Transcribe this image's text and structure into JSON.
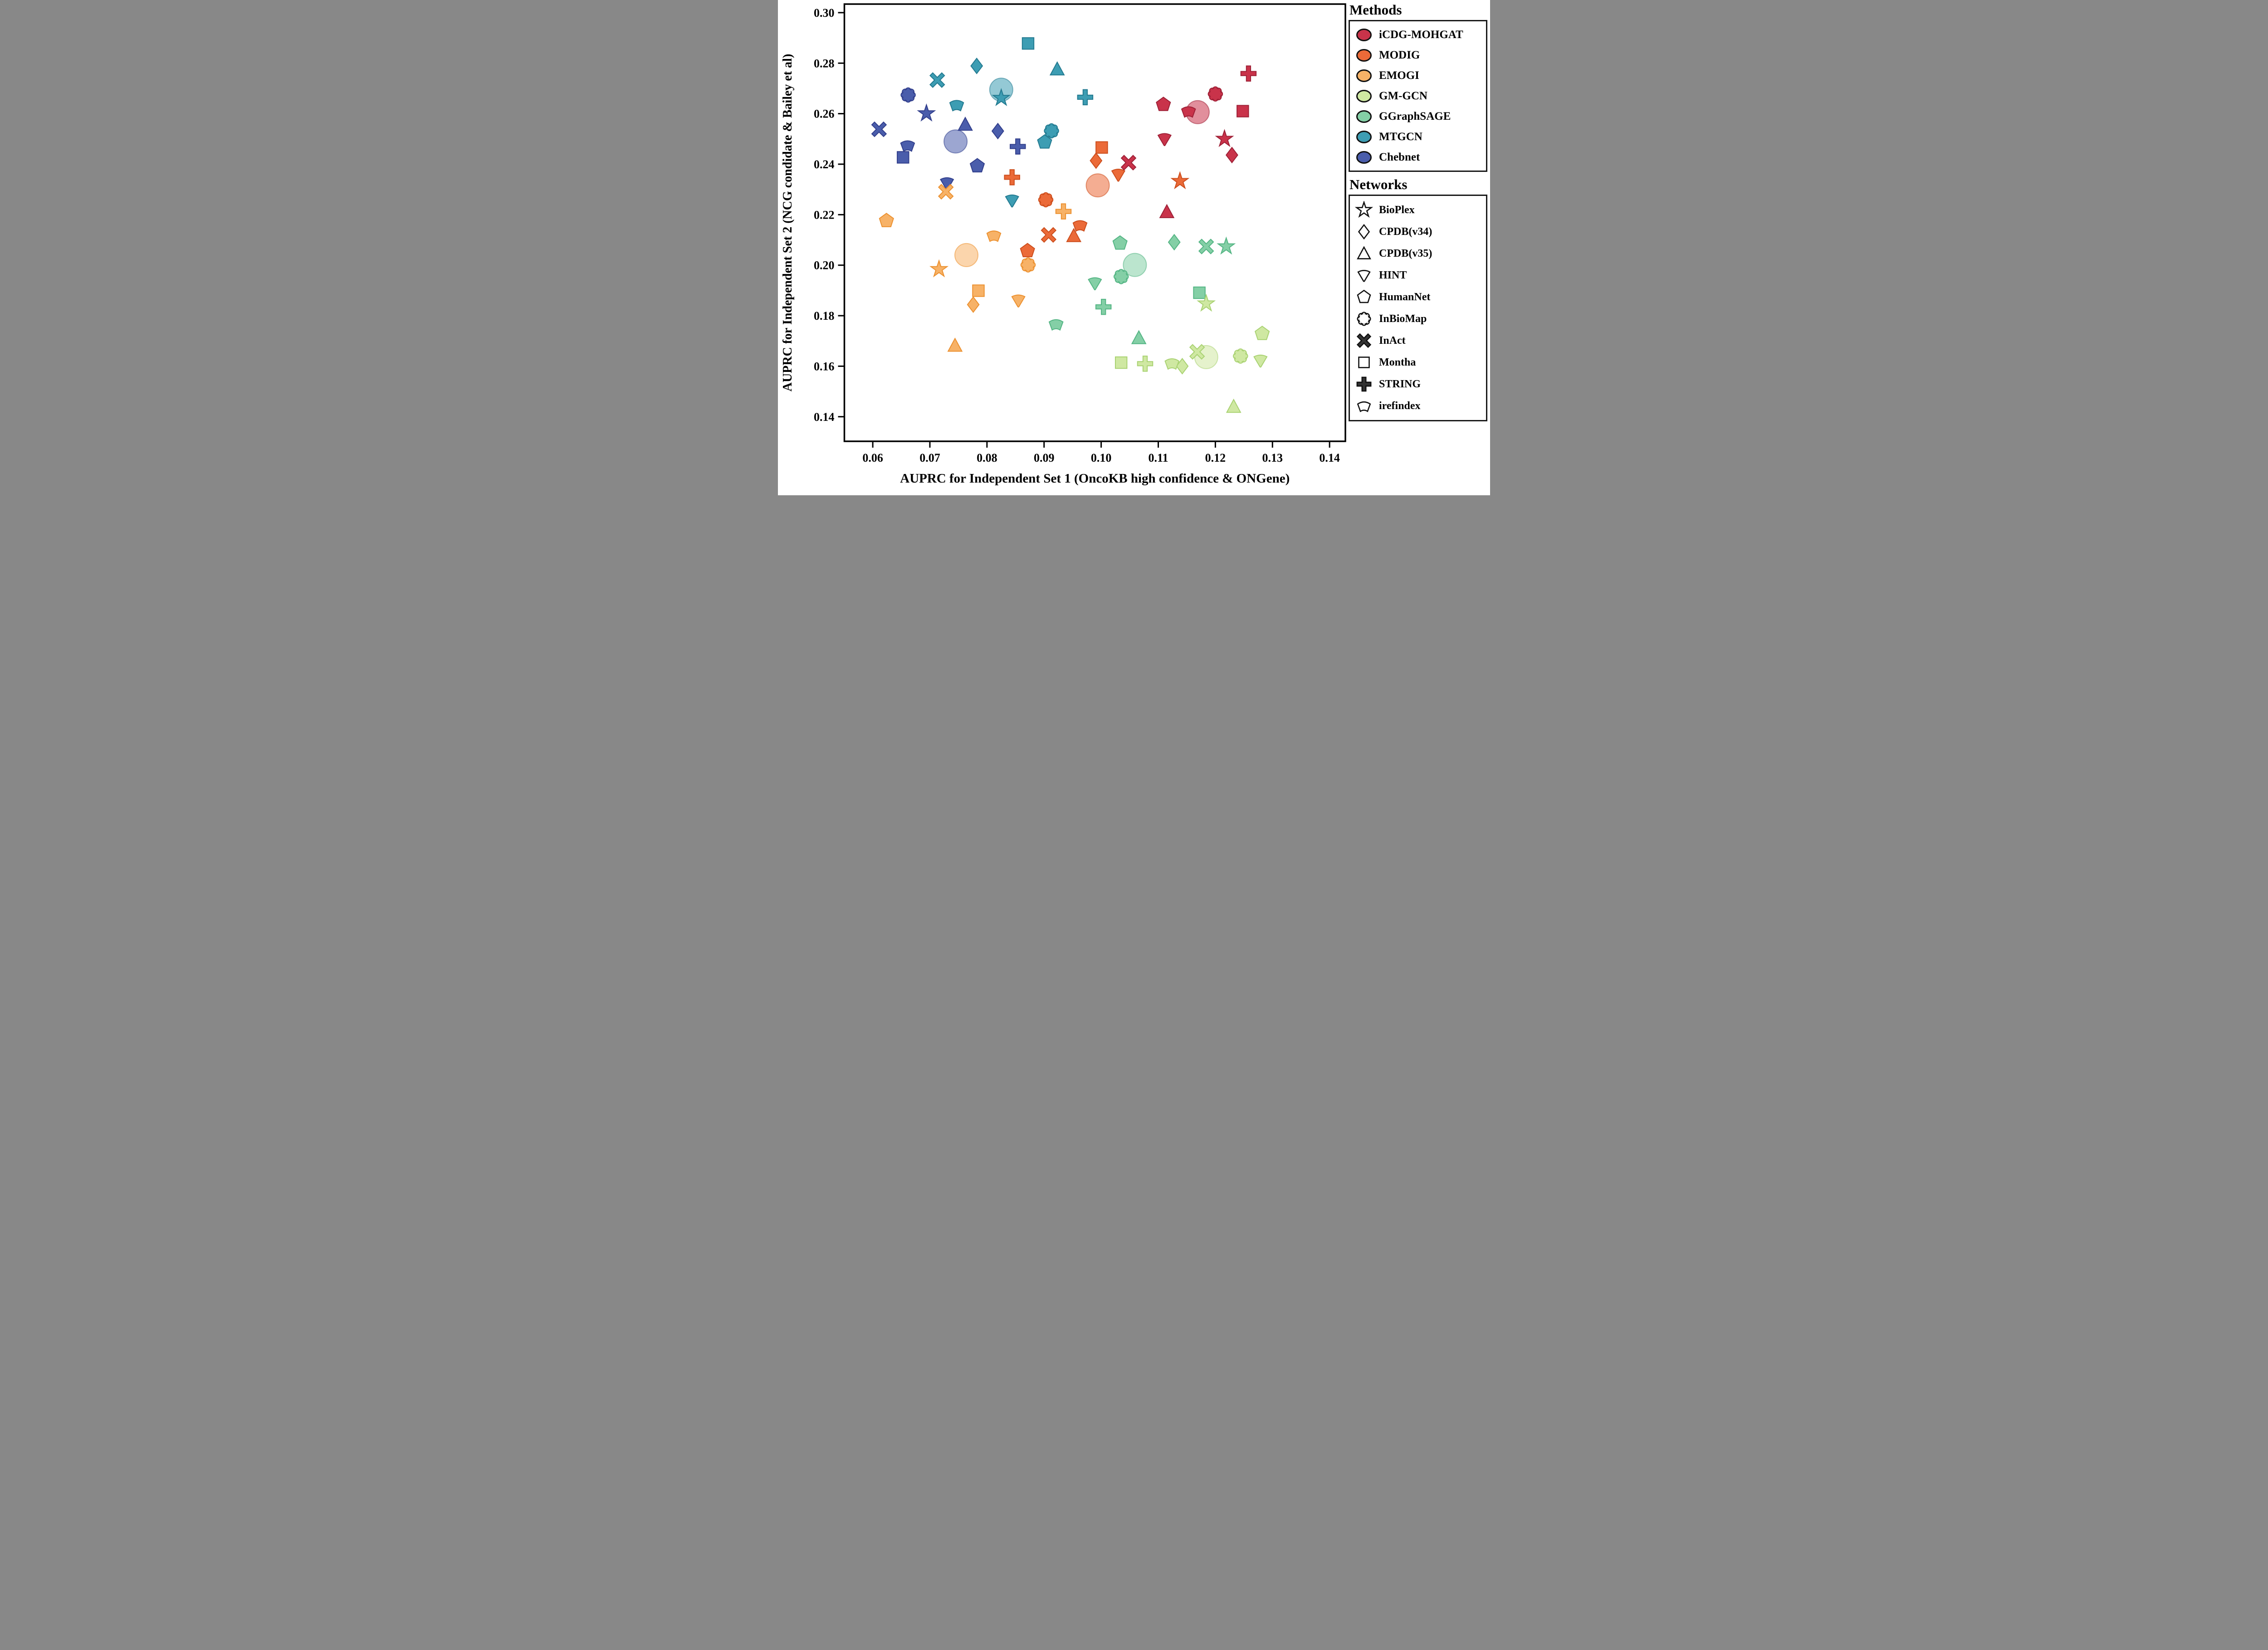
{
  "page": {
    "background": "#ffffff"
  },
  "chart_data": {
    "type": "scatter",
    "title": "",
    "xlabel": "AUPRC for Independent Set 1 (OncoKB high confidence & ONGene)",
    "ylabel": "AUPRC for Independent Set 2 (NCG condidate & Bailey et al)",
    "xlim": [
      0.055,
      0.1428
    ],
    "ylim": [
      0.1303,
      0.3034
    ],
    "grid": false,
    "legend_position": "right",
    "xticks": [
      0.06,
      0.07,
      0.08,
      0.09,
      0.1,
      0.11,
      0.12,
      0.13,
      0.14
    ],
    "xtick_labels": [
      "0.06",
      "0.07",
      "0.08",
      "0.09",
      "0.10",
      "0.11",
      "0.12",
      "0.13",
      "0.14"
    ],
    "yticks": [
      0.14,
      0.16,
      0.18,
      0.2,
      0.22,
      0.24,
      0.26,
      0.28,
      0.3
    ],
    "ytick_labels": [
      "0.14",
      "0.16",
      "0.18",
      "0.20",
      "0.22",
      "0.24",
      "0.26",
      "0.28",
      "0.30"
    ],
    "legend_methods_title": "Methods",
    "legend_networks_title": "Networks",
    "networks": [
      {
        "name": "BioPlex",
        "shape": "star"
      },
      {
        "name": "CPDB(v34)",
        "shape": "diamond"
      },
      {
        "name": "CPDB(v35)",
        "shape": "triangle"
      },
      {
        "name": "HINT",
        "shape": "hint"
      },
      {
        "name": "HumanNet",
        "shape": "pentagon"
      },
      {
        "name": "InBioMap",
        "shape": "cloud"
      },
      {
        "name": "InAct",
        "shape": "x"
      },
      {
        "name": "Montha",
        "shape": "square"
      },
      {
        "name": "STRING",
        "shape": "plus"
      },
      {
        "name": "irefindex",
        "shape": "irefindex"
      }
    ],
    "methods": [
      {
        "name": "iCDG-MOHGAT",
        "color": "#c9334a",
        "edge": "#9e2036"
      },
      {
        "name": "MODIG",
        "color": "#eb6a38",
        "edge": "#cc4d1c"
      },
      {
        "name": "EMOGI",
        "color": "#f7b267",
        "edge": "#ec9130"
      },
      {
        "name": "GM-GCN",
        "color": "#cfe8a2",
        "edge": "#a9d272"
      },
      {
        "name": "GGraphSAGE",
        "color": "#84cfa6",
        "edge": "#54b584"
      },
      {
        "name": "MTGCN",
        "color": "#3d9db3",
        "edge": "#237a90"
      },
      {
        "name": "Chebnet",
        "color": "#4a5dab",
        "edge": "#323f8c"
      }
    ],
    "series": [
      {
        "method": "iCDG-MOHGAT",
        "values": [
          [
            0.1216,
            0.25
          ],
          [
            0.1229,
            0.2436
          ],
          [
            0.1115,
            0.2211
          ],
          [
            0.1111,
            0.25
          ],
          [
            0.1109,
            0.2636
          ],
          [
            0.12,
            0.2678
          ],
          [
            0.1048,
            0.2406
          ],
          [
            0.1248,
            0.261
          ],
          [
            0.1258,
            0.2759
          ],
          [
            0.1153,
            0.261
          ]
        ],
        "mean": [
          0.1169,
          0.2606
        ]
      },
      {
        "method": "MODIG",
        "values": [
          [
            0.1138,
            0.2333
          ],
          [
            0.0991,
            0.2414
          ],
          [
            0.0952,
            0.2116
          ],
          [
            0.103,
            0.2359
          ],
          [
            0.0871,
            0.2057
          ],
          [
            0.0903,
            0.2259
          ],
          [
            0.0908,
            0.212
          ],
          [
            0.1001,
            0.2466
          ],
          [
            0.0844,
            0.2348
          ],
          [
            0.0963,
            0.2159
          ]
        ],
        "mean": [
          0.0994,
          0.2316
        ]
      },
      {
        "method": "EMOGI",
        "values": [
          [
            0.0716,
            0.1984
          ],
          [
            0.0776,
            0.1844
          ],
          [
            0.0744,
            0.1682
          ],
          [
            0.0855,
            0.1861
          ],
          [
            0.0624,
            0.2176
          ],
          [
            0.0872,
            0.2001
          ],
          [
            0.0728,
            0.2291
          ],
          [
            0.0785,
            0.1899
          ],
          [
            0.0934,
            0.2213
          ],
          [
            0.0812,
            0.2118
          ]
        ],
        "mean": [
          0.0764,
          0.204
        ]
      },
      {
        "method": "GM-GCN",
        "values": [
          [
            0.1184,
            0.1848
          ],
          [
            0.1142,
            0.16
          ],
          [
            0.1232,
            0.144
          ],
          [
            0.1279,
            0.1623
          ],
          [
            0.1282,
            0.1729
          ],
          [
            0.1244,
            0.164
          ],
          [
            0.1168,
            0.1657
          ],
          [
            0.1035,
            0.1614
          ],
          [
            0.1077,
            0.161
          ],
          [
            0.1124,
            0.1612
          ]
        ],
        "mean": [
          0.1184,
          0.1636
        ]
      },
      {
        "method": "GGraphSAGE",
        "values": [
          [
            0.1219,
            0.2074
          ],
          [
            0.1128,
            0.2091
          ],
          [
            0.1066,
            0.1712
          ],
          [
            0.0989,
            0.1929
          ],
          [
            0.1033,
            0.2087
          ],
          [
            0.1035,
            0.1955
          ],
          [
            0.1184,
            0.2074
          ],
          [
            0.1172,
            0.1891
          ],
          [
            0.1004,
            0.1835
          ],
          [
            0.0921,
            0.1767
          ]
        ],
        "mean": [
          0.1059,
          0.2001
        ]
      },
      {
        "method": "MTGCN",
        "values": [
          [
            0.0825,
            0.2662
          ],
          [
            0.0782,
            0.2789
          ],
          [
            0.0923,
            0.2776
          ],
          [
            0.0844,
            0.2257
          ],
          [
            0.0901,
            0.2487
          ],
          [
            0.0913,
            0.2532
          ],
          [
            0.0713,
            0.2733
          ],
          [
            0.0872,
            0.2878
          ],
          [
            0.0972,
            0.2665
          ],
          [
            0.0747,
            0.2635
          ]
        ],
        "mean": [
          0.0825,
          0.2695
        ]
      },
      {
        "method": "Chebnet",
        "values": [
          [
            0.0694,
            0.2601
          ],
          [
            0.0819,
            0.2531
          ],
          [
            0.0762,
            0.2557
          ],
          [
            0.073,
            0.2325
          ],
          [
            0.0783,
            0.2393
          ],
          [
            0.0662,
            0.2674
          ],
          [
            0.0611,
            0.2538
          ],
          [
            0.0653,
            0.2427
          ],
          [
            0.0854,
            0.247
          ],
          [
            0.0661,
            0.2475
          ]
        ],
        "mean": [
          0.0745,
          0.249
        ]
      }
    ]
  }
}
